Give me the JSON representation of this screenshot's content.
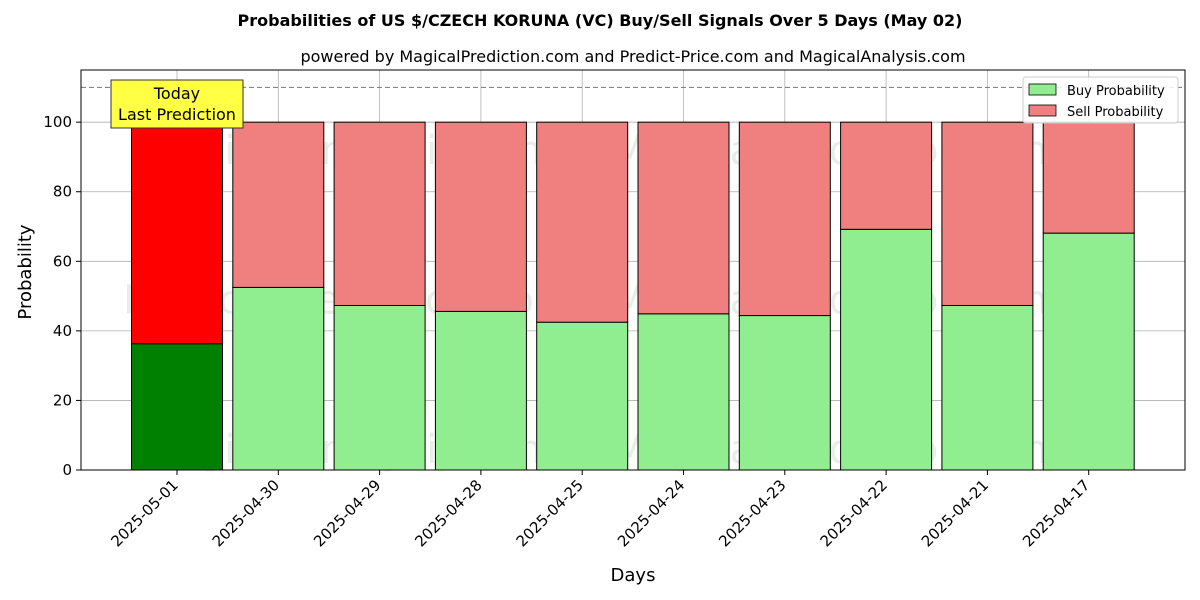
{
  "chart_data": {
    "type": "bar",
    "stacked": true,
    "title": "Probabilities of US $/CZECH KORUNA (VC) Buy/Sell Signals Over 5 Days (May 02)",
    "subtitle": "powered by MagicalPrediction.com and Predict-Price.com and MagicalAnalysis.com",
    "xlabel": "Days",
    "ylabel": "Probability",
    "ylim": [
      0,
      115
    ],
    "yticks": [
      0,
      20,
      40,
      60,
      80,
      100
    ],
    "reference_line": 110,
    "grid": true,
    "legend_position": "top-right",
    "categories": [
      "2025-05-01",
      "2025-04-30",
      "2025-04-29",
      "2025-04-28",
      "2025-04-25",
      "2025-04-24",
      "2025-04-23",
      "2025-04-22",
      "2025-04-21",
      "2025-04-17"
    ],
    "series": [
      {
        "name": "Buy Probability",
        "values": [
          36.3,
          52.5,
          47.3,
          45.6,
          42.5,
          44.9,
          44.4,
          69.2,
          47.3,
          68.1
        ],
        "color": "#90ee90",
        "highlight_color": "#008000"
      },
      {
        "name": "Sell Probability",
        "values": [
          63.7,
          47.5,
          52.7,
          54.4,
          57.5,
          55.1,
          55.6,
          30.8,
          52.7,
          31.9
        ],
        "color": "#f08080",
        "highlight_color": "#ff0000"
      }
    ],
    "highlight_index": 0,
    "annotation": {
      "line1": "Today",
      "line2": "Last Prediction",
      "background": "#ffff44"
    },
    "watermarks": [
      "MagicalAnalysis.com",
      "MagicalPrediction.com"
    ]
  }
}
